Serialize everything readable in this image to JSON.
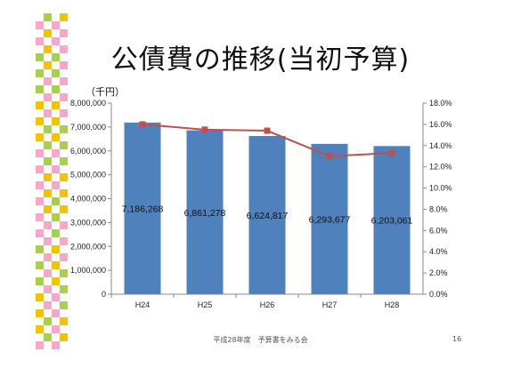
{
  "slide": {
    "title": "公債費の推移(当初予算)",
    "footer": "平成28年度　予算書をみる会",
    "page_number": "16"
  },
  "colors": {
    "bar": "#4f81bd",
    "line": "#c0504d",
    "deco_pink": "#f9a7c9",
    "deco_yellow": "#f2c400",
    "deco_green": "#a8d04c"
  },
  "chart_data": {
    "type": "bar",
    "categories": [
      "H24",
      "H25",
      "H26",
      "H27",
      "H28"
    ],
    "ylabel": "（千円）",
    "ylim": [
      0,
      8000000
    ],
    "y_ticks": [
      "0",
      "1,000,000",
      "2,000,000",
      "3,000,000",
      "4,000,000",
      "5,000,000",
      "6,000,000",
      "7,000,000",
      "8,000,000"
    ],
    "y2lim": [
      0,
      18
    ],
    "y2_ticks": [
      "0.0%",
      "2.0%",
      "4.0%",
      "6.0%",
      "8.0%",
      "10.0%",
      "12.0%",
      "14.0%",
      "16.0%",
      "18.0%"
    ],
    "series": [
      {
        "type": "bar",
        "values": [
          7186268,
          6861278,
          6624817,
          6293677,
          6203061
        ],
        "labels": [
          "7,186,268",
          "6,861,278",
          "6,624,817",
          "6,293,677",
          "6,203,061"
        ]
      },
      {
        "type": "line",
        "axis": "right",
        "values": [
          16.0,
          15.5,
          15.4,
          13.0,
          13.3
        ]
      }
    ],
    "grid": false,
    "legend": "none"
  }
}
